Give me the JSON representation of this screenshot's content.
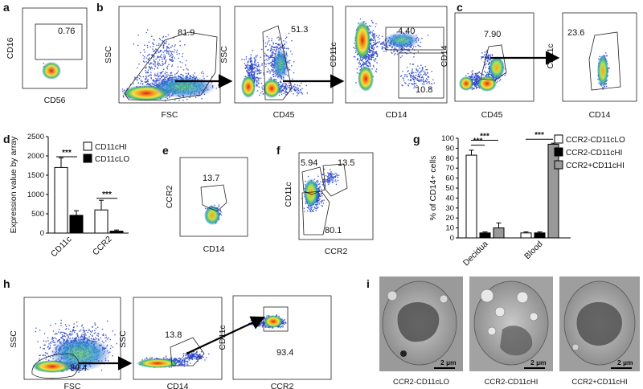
{
  "panels": {
    "a": {
      "letter": "a",
      "gates": [
        {
          "value": "0.76"
        }
      ],
      "xlabel": "CD56",
      "ylabel": "CD16"
    },
    "b": {
      "letter": "b",
      "plot1": {
        "gate": "81.9",
        "xlabel": "FSC",
        "ylabel": "SSC"
      },
      "plot2": {
        "gate": "51.3",
        "xlabel": "CD45",
        "ylabel": "SSC"
      },
      "plot3": {
        "gate_hi": "4.40",
        "gate_lo": "10.8",
        "xlabel": "CD14",
        "ylabel": "CD11c"
      }
    },
    "c": {
      "letter": "c",
      "plot1": {
        "gate": "7.90",
        "xlabel": "CD45",
        "ylabel": "CD14"
      },
      "plot2": {
        "gate": "23.6",
        "xlabel": "CD14",
        "ylabel": "CD11c"
      }
    },
    "e": {
      "letter": "e",
      "gate": "13.7",
      "xlabel": "CD14",
      "ylabel": "CCR2"
    },
    "f": {
      "letter": "f",
      "gate_tl": "5.94",
      "gate_tr": "13.5",
      "gate_bl": "80.1",
      "xlabel": "CCR2",
      "ylabel": "CD11c"
    },
    "h": {
      "letter": "h",
      "plot1": {
        "gate": "80.4",
        "xlabel": "FSC",
        "ylabel": "SSC"
      },
      "plot2": {
        "gate": "13.8",
        "xlabel": "CD14",
        "ylabel": "SSC"
      },
      "plot3": {
        "gate": "93.4",
        "xlabel": "CCR2",
        "ylabel": "CD11c"
      }
    },
    "i": {
      "letter": "i",
      "scale_bar": "2 µm",
      "captions": [
        "CCR2-CD11cLO",
        "CCR2-CD11cHI",
        "CCR2+CD11cHI"
      ]
    }
  },
  "chart_data": [
    {
      "panel": "d",
      "type": "bar",
      "ylabel": "Expression value by array",
      "ylim": [
        0,
        2500
      ],
      "yticks": [
        "0",
        "500",
        "1000",
        "1500",
        "2000",
        "2500"
      ],
      "categories": [
        "CD11c",
        "CCR2"
      ],
      "series": [
        {
          "name": "CD11cHI",
          "color": "#ffffff",
          "values": [
            1700,
            600
          ],
          "errors": [
            250,
            250
          ]
        },
        {
          "name": "CD11cLO",
          "color": "#000000",
          "values": [
            460,
            50
          ],
          "errors": [
            120,
            30
          ]
        }
      ],
      "annotations": [
        "***",
        "***"
      ]
    },
    {
      "panel": "g",
      "type": "bar",
      "ylabel": "% of CD14+ cells",
      "ylim": [
        0,
        100
      ],
      "yticks": [
        "0",
        "10",
        "20",
        "30",
        "40",
        "50",
        "60",
        "70",
        "80",
        "90",
        "100"
      ],
      "categories": [
        "Decidua",
        "Blood"
      ],
      "series": [
        {
          "name": "CCR2-CD11cLO",
          "color": "#ffffff",
          "values": [
            83,
            5
          ],
          "errors": [
            5,
            1
          ]
        },
        {
          "name": "CCR2-CD11cHI",
          "color": "#000000",
          "values": [
            5,
            5
          ],
          "errors": [
            1,
            1
          ]
        },
        {
          "name": "CCR2+CD11cHI",
          "color": "#999999",
          "values": [
            10,
            94
          ],
          "errors": [
            5,
            1
          ]
        }
      ],
      "annotations": [
        "***",
        "***",
        "***"
      ]
    }
  ]
}
